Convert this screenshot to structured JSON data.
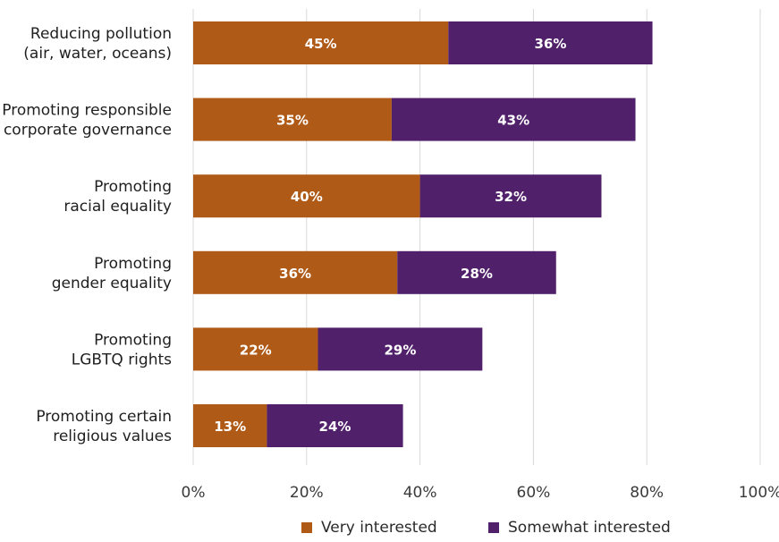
{
  "chart_data": {
    "type": "bar",
    "orientation": "horizontal",
    "stacked": true,
    "categories": [
      [
        "Reducing pollution",
        "(air, water, oceans)"
      ],
      [
        "Promoting responsible",
        "corporate governance"
      ],
      [
        "Promoting",
        "racial equality"
      ],
      [
        "Promoting",
        "gender equality"
      ],
      [
        "Promoting",
        "LGBTQ rights"
      ],
      [
        "Promoting certain",
        "religious values"
      ]
    ],
    "series": [
      {
        "name": "Very interested",
        "color": "#b05a17",
        "values": [
          45,
          35,
          40,
          36,
          22,
          13
        ]
      },
      {
        "name": "Somewhat interested",
        "color": "#51206a",
        "values": [
          36,
          43,
          32,
          28,
          29,
          24
        ]
      }
    ],
    "data_labels": [
      [
        "45%",
        "35%",
        "40%",
        "36%",
        "22%",
        "13%"
      ],
      [
        "36%",
        "43%",
        "32%",
        "28%",
        "29%",
        "24%"
      ]
    ],
    "xlim": [
      0,
      100
    ],
    "x_ticks": [
      0,
      20,
      40,
      60,
      80,
      100
    ],
    "x_tick_labels": [
      "0%",
      "20%",
      "40%",
      "60%",
      "80%",
      "100%"
    ],
    "grid": "vertical",
    "legend_position": "bottom",
    "title": "",
    "xlabel": "",
    "ylabel": ""
  },
  "legend": {
    "very_label": "Very interested",
    "somewhat_label": "Somewhat interested"
  }
}
